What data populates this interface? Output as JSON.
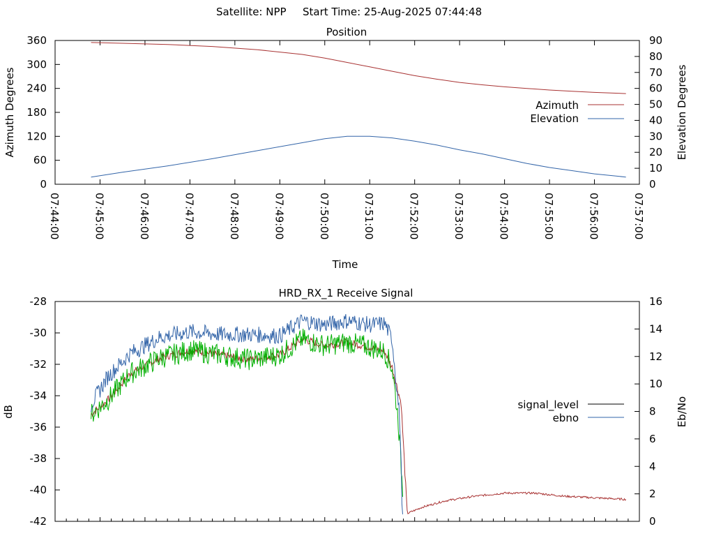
{
  "header": {
    "satellite": "Satellite: NPP",
    "start_time": "Start Time: 25-Aug-2025 07:44:48"
  },
  "colors": {
    "azimuth": "#a83232",
    "elevation": "#3264a8",
    "signal_level": "#a83232",
    "ebno": "#3264a8",
    "green_trace": "#00b000",
    "legend_signal_level": "#000000",
    "legend_ebno": "#3264a8"
  },
  "chart_data": [
    {
      "type": "line",
      "title": "Position",
      "xlabel": "Time",
      "ylabel": "Azimuth Degrees",
      "y2label": "Elevation Degrees",
      "ylim": [
        0,
        360
      ],
      "y2lim": [
        0,
        90
      ],
      "yticks": [
        "0",
        "60",
        "120",
        "180",
        "240",
        "300",
        "360"
      ],
      "y2ticks": [
        "0",
        "10",
        "20",
        "30",
        "40",
        "50",
        "60",
        "70",
        "80",
        "90"
      ],
      "xticks": [
        "07:44:00",
        "07:45:00",
        "07:46:00",
        "07:47:00",
        "07:48:00",
        "07:49:00",
        "07:50:00",
        "07:51:00",
        "07:52:00",
        "07:53:00",
        "07:54:00",
        "07:55:00",
        "07:56:00",
        "07:57:00"
      ],
      "legend_position": "right",
      "series": [
        {
          "name": "Azimuth",
          "axis": "left",
          "x": [
            "07:44:48",
            "07:45:30",
            "07:46:30",
            "07:47:30",
            "07:48:30",
            "07:49:30",
            "07:50:00",
            "07:50:30",
            "07:51:00",
            "07:51:30",
            "07:52:00",
            "07:52:30",
            "07:53:00",
            "07:53:30",
            "07:54:00",
            "07:54:30",
            "07:55:00",
            "07:55:30",
            "07:56:00",
            "07:56:42"
          ],
          "values": [
            355,
            353,
            350,
            345,
            337,
            325,
            316,
            305,
            294,
            283,
            272,
            263,
            255,
            249,
            244,
            240,
            236,
            233,
            230,
            227
          ]
        },
        {
          "name": "Elevation",
          "axis": "right",
          "x": [
            "07:44:48",
            "07:45:30",
            "07:46:30",
            "07:47:30",
            "07:48:30",
            "07:49:30",
            "07:50:00",
            "07:50:30",
            "07:51:00",
            "07:51:30",
            "07:52:00",
            "07:52:30",
            "07:53:00",
            "07:53:30",
            "07:54:00",
            "07:54:30",
            "07:55:00",
            "07:55:30",
            "07:56:00",
            "07:56:42"
          ],
          "values": [
            4.5,
            7.5,
            11.5,
            16,
            21,
            26,
            28.5,
            30,
            30,
            29,
            27,
            24.5,
            21.5,
            19,
            16,
            13,
            10.5,
            8.5,
            6.5,
            4.5
          ]
        }
      ]
    },
    {
      "type": "line",
      "title": "HRD_RX_1 Receive Signal",
      "ylabel": "dB",
      "y2label": "Eb/No",
      "ylim": [
        -42,
        -28
      ],
      "y2lim": [
        0,
        16
      ],
      "yticks": [
        "-42",
        "-40",
        "-38",
        "-36",
        "-34",
        "-32",
        "-30",
        "-28"
      ],
      "y2ticks": [
        "0",
        "2",
        "4",
        "6",
        "8",
        "10",
        "12",
        "14",
        "16"
      ],
      "legend_position": "right",
      "series": [
        {
          "name": "signal_level",
          "axis": "left",
          "x": [
            "07:44:48",
            "07:45:10",
            "07:45:40",
            "07:46:20",
            "07:47:00",
            "07:47:40",
            "07:48:20",
            "07:49:00",
            "07:49:30",
            "07:50:00",
            "07:50:30",
            "07:51:00",
            "07:51:20",
            "07:51:30",
            "07:51:42",
            "07:51:50",
            "07:52:10",
            "07:52:40",
            "07:53:20",
            "07:54:00",
            "07:54:40",
            "07:55:20",
            "07:56:00",
            "07:56:42"
          ],
          "values": [
            -35.2,
            -34.3,
            -32.6,
            -31.6,
            -31.1,
            -31.4,
            -31.7,
            -31.4,
            -30.4,
            -30.8,
            -30.6,
            -30.9,
            -31.2,
            -32.2,
            -34.5,
            -41.5,
            -41.1,
            -40.7,
            -40.4,
            -40.2,
            -40.2,
            -40.4,
            -40.5,
            -40.6
          ]
        },
        {
          "name": "ebno",
          "axis": "right",
          "x": [
            "07:44:48",
            "07:45:10",
            "07:45:40",
            "07:46:20",
            "07:47:00",
            "07:47:40",
            "07:48:20",
            "07:49:00",
            "07:49:30",
            "07:50:00",
            "07:50:30",
            "07:51:00",
            "07:51:20",
            "07:51:30",
            "07:51:40",
            "07:51:44"
          ],
          "values": [
            8.5,
            10.5,
            12.2,
            13.4,
            13.8,
            13.6,
            13.6,
            13.5,
            14.6,
            14.3,
            14.6,
            14.3,
            14.4,
            13.2,
            7.5,
            0
          ]
        },
        {
          "name": "",
          "axis": "left",
          "x": [
            "07:44:48",
            "07:45:10",
            "07:45:40",
            "07:46:20",
            "07:47:00",
            "07:47:40",
            "07:48:20",
            "07:49:00",
            "07:49:30",
            "07:50:00",
            "07:50:30",
            "07:51:00",
            "07:51:20",
            "07:51:30",
            "07:51:38",
            "07:51:44"
          ],
          "values": [
            -35.2,
            -34.3,
            -32.6,
            -31.6,
            -31.1,
            -31.4,
            -31.7,
            -31.4,
            -30.4,
            -30.8,
            -30.6,
            -30.9,
            -31.2,
            -32.2,
            -35.5,
            -40
          ]
        }
      ]
    }
  ]
}
